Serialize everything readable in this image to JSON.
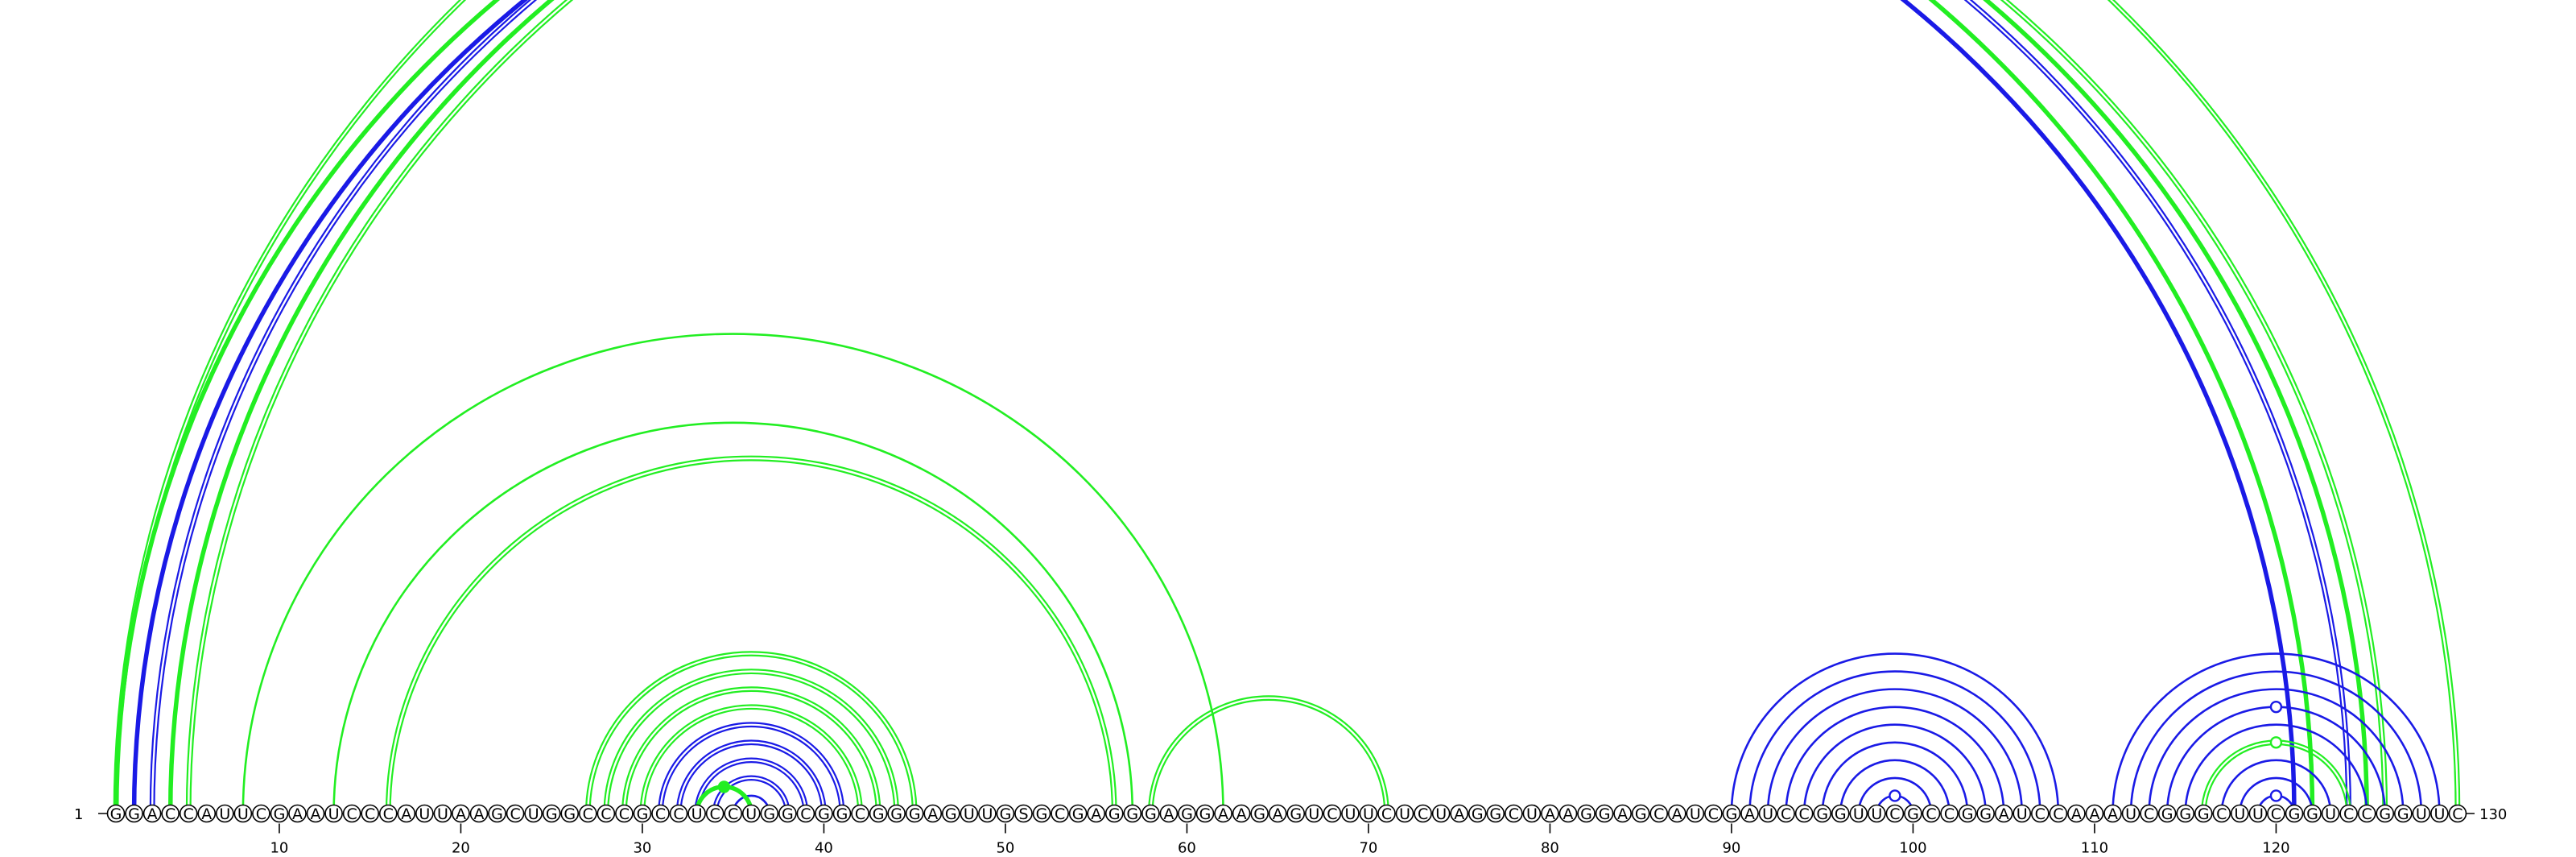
{
  "sequence": "GGACCAUUCGAAUCCCAUUAAGCUGGCCCGCCUCCUGGCGGCGGGAGUUGSGCGAGGGAGGAAGAGUCUUCUCUAGGCUAAGGAGCAUCGAUCCGGUUCGCCGGAUCCAAAUCGGGCUUCGGUCCGGUUC",
  "start_label": "1",
  "end_label": "130",
  "tick_labels": [
    {
      "pos": 10,
      "label": "10"
    },
    {
      "pos": 20,
      "label": "20"
    },
    {
      "pos": 30,
      "label": "30"
    },
    {
      "pos": 40,
      "label": "40"
    },
    {
      "pos": 50,
      "label": "50"
    },
    {
      "pos": 60,
      "label": "60"
    },
    {
      "pos": 70,
      "label": "70"
    },
    {
      "pos": 80,
      "label": "80"
    },
    {
      "pos": 90,
      "label": "90"
    },
    {
      "pos": 100,
      "label": "100"
    },
    {
      "pos": 110,
      "label": "110"
    },
    {
      "pos": 120,
      "label": "120"
    }
  ],
  "colors": {
    "green": "#22ee22",
    "blue": "#1a1ae6"
  },
  "pairs": [
    {
      "i": 1,
      "j": 130,
      "color": "green",
      "style": "double"
    },
    {
      "i": 1,
      "j": 122,
      "color": "green",
      "style": "thick"
    },
    {
      "i": 2,
      "j": 121,
      "color": "blue",
      "style": "thick"
    },
    {
      "i": 3,
      "j": 124,
      "color": "blue",
      "style": "double"
    },
    {
      "i": 4,
      "j": 125,
      "color": "green",
      "style": "thick"
    },
    {
      "i": 5,
      "j": 126,
      "color": "green",
      "style": "double"
    },
    {
      "i": 8,
      "j": 62,
      "color": "green",
      "style": "single"
    },
    {
      "i": 13,
      "j": 57,
      "color": "green",
      "style": "single"
    },
    {
      "i": 16,
      "j": 56,
      "color": "green",
      "style": "double"
    },
    {
      "i": 27,
      "j": 45,
      "color": "green",
      "style": "double"
    },
    {
      "i": 28,
      "j": 44,
      "color": "green",
      "style": "double"
    },
    {
      "i": 29,
      "j": 43,
      "color": "green",
      "style": "double"
    },
    {
      "i": 30,
      "j": 42,
      "color": "green",
      "style": "double"
    },
    {
      "i": 31,
      "j": 41,
      "color": "blue",
      "style": "double"
    },
    {
      "i": 32,
      "j": 40,
      "color": "blue",
      "style": "double"
    },
    {
      "i": 33,
      "j": 39,
      "color": "blue",
      "style": "double"
    },
    {
      "i": 34,
      "j": 38,
      "color": "blue",
      "style": "double"
    },
    {
      "i": 35,
      "j": 37,
      "color": "blue",
      "style": "single"
    },
    {
      "i": 33,
      "j": 36,
      "color": "green",
      "style": "thick"
    },
    {
      "i": 58,
      "j": 71,
      "color": "green",
      "style": "double"
    },
    {
      "i": 90,
      "j": 108,
      "color": "blue",
      "style": "single"
    },
    {
      "i": 91,
      "j": 107,
      "color": "blue",
      "style": "single"
    },
    {
      "i": 92,
      "j": 106,
      "color": "blue",
      "style": "single"
    },
    {
      "i": 93,
      "j": 105,
      "color": "blue",
      "style": "single"
    },
    {
      "i": 94,
      "j": 104,
      "color": "blue",
      "style": "single"
    },
    {
      "i": 95,
      "j": 103,
      "color": "blue",
      "style": "single"
    },
    {
      "i": 96,
      "j": 102,
      "color": "blue",
      "style": "single"
    },
    {
      "i": 97,
      "j": 101,
      "color": "blue",
      "style": "single"
    },
    {
      "i": 98,
      "j": 100,
      "color": "blue",
      "style": "single"
    },
    {
      "i": 111,
      "j": 129,
      "color": "blue",
      "style": "single"
    },
    {
      "i": 112,
      "j": 128,
      "color": "blue",
      "style": "single"
    },
    {
      "i": 113,
      "j": 127,
      "color": "blue",
      "style": "single"
    },
    {
      "i": 114,
      "j": 126,
      "color": "blue",
      "style": "single"
    },
    {
      "i": 115,
      "j": 125,
      "color": "blue",
      "style": "single"
    },
    {
      "i": 116,
      "j": 124,
      "color": "green",
      "style": "double"
    },
    {
      "i": 117,
      "j": 123,
      "color": "blue",
      "style": "single"
    },
    {
      "i": 118,
      "j": 122,
      "color": "blue",
      "style": "single"
    },
    {
      "i": 119,
      "j": 121,
      "color": "blue",
      "style": "single"
    }
  ],
  "markers": [
    {
      "pair": [
        1,
        130
      ],
      "color": "green",
      "filled": false
    },
    {
      "pair": [
        33,
        36
      ],
      "color": "green",
      "filled": true
    },
    {
      "pair": [
        98,
        100
      ],
      "color": "blue",
      "filled": false
    },
    {
      "pair": [
        114,
        126
      ],
      "color": "blue",
      "filled": false
    },
    {
      "pair": [
        116,
        124
      ],
      "color": "green",
      "filled": false
    },
    {
      "pair": [
        119,
        121
      ],
      "color": "blue",
      "filled": false
    }
  ]
}
